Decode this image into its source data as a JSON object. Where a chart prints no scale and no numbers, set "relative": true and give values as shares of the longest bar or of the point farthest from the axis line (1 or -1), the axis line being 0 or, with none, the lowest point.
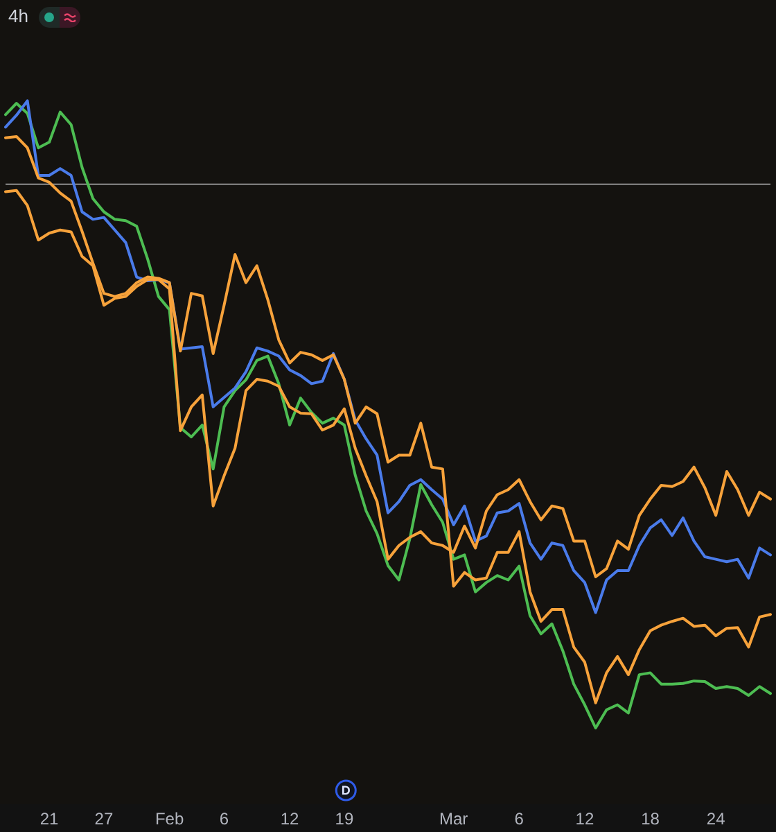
{
  "chart_data": {
    "type": "line",
    "title": "4h",
    "relative": true,
    "categories": [
      null,
      null,
      null,
      null,
      "21",
      null,
      null,
      null,
      null,
      "27",
      null,
      null,
      null,
      null,
      null,
      "Feb",
      null,
      null,
      null,
      null,
      "6",
      null,
      null,
      null,
      null,
      null,
      "12",
      null,
      null,
      null,
      null,
      "19",
      null,
      null,
      null,
      null,
      null,
      null,
      null,
      null,
      null,
      "Mar",
      null,
      null,
      null,
      null,
      null,
      "6",
      null,
      null,
      null,
      null,
      null,
      "12",
      null,
      null,
      null,
      null,
      null,
      "18",
      null,
      null,
      null,
      null,
      null,
      "24",
      null,
      null,
      null,
      null,
      null
    ],
    "series": [
      {
        "color": "#f7a23b",
        "values": [
          0.855,
          0.857,
          0.833,
          0.778,
          0.789,
          0.794,
          0.791,
          0.752,
          0.737,
          0.674,
          0.685,
          0.688,
          0.704,
          0.715,
          0.715,
          0.7,
          0.474,
          0.512,
          0.531,
          0.354,
          0.402,
          0.446,
          0.538,
          0.556,
          0.553,
          0.545,
          0.512,
          0.502,
          0.501,
          0.475,
          0.483,
          0.509,
          0.446,
          0.402,
          0.361,
          0.269,
          0.291,
          0.304,
          0.313,
          0.295,
          0.291,
          0.28,
          0.322,
          0.287,
          0.346,
          0.372,
          0.38,
          0.396,
          0.361,
          0.332,
          0.354,
          0.35,
          0.298,
          0.298,
          0.241,
          0.254,
          0.298,
          0.285,
          0.339,
          0.365,
          0.387,
          0.385,
          0.393,
          0.416,
          0.383,
          0.339,
          0.409,
          0.38,
          0.339,
          0.376,
          0.365
        ]
      },
      {
        "color": "#f7a23b",
        "values": [
          0.941,
          0.943,
          0.925,
          0.877,
          0.87,
          0.853,
          0.84,
          0.792,
          0.741,
          0.693,
          0.688,
          0.693,
          0.71,
          0.719,
          0.717,
          0.71,
          0.601,
          0.693,
          0.689,
          0.597,
          0.674,
          0.755,
          0.71,
          0.737,
          0.683,
          0.619,
          0.582,
          0.599,
          0.595,
          0.586,
          0.595,
          0.556,
          0.486,
          0.512,
          0.501,
          0.424,
          0.435,
          0.435,
          0.486,
          0.416,
          0.413,
          0.226,
          0.248,
          0.236,
          0.239,
          0.28,
          0.28,
          0.313,
          0.217,
          0.17,
          0.189,
          0.189,
          0.129,
          0.105,
          0.04,
          0.088,
          0.114,
          0.085,
          0.125,
          0.155,
          0.164,
          0.17,
          0.175,
          0.162,
          0.164,
          0.147,
          0.159,
          0.16,
          0.129,
          0.177,
          0.181
        ]
      },
      {
        "color": "#4a7bea",
        "values": [
          0.958,
          0.977,
          1,
          0.881,
          0.881,
          0.892,
          0.881,
          0.823,
          0.811,
          0.814,
          0.794,
          0.774,
          0.719,
          0.713,
          0.715,
          0.71,
          0.604,
          0.606,
          0.608,
          0.512,
          0.527,
          0.542,
          0.568,
          0.606,
          0.601,
          0.593,
          0.571,
          0.562,
          0.549,
          0.553,
          0.597,
          0.556,
          0.491,
          0.461,
          0.435,
          0.343,
          0.361,
          0.387,
          0.396,
          0.38,
          0.365,
          0.324,
          0.354,
          0.298,
          0.306,
          0.343,
          0.346,
          0.358,
          0.295,
          0.269,
          0.295,
          0.291,
          0.251,
          0.232,
          0.184,
          0.236,
          0.251,
          0.251,
          0.291,
          0.319,
          0.332,
          0.307,
          0.335,
          0.298,
          0.273,
          0.269,
          0.265,
          0.269,
          0.239,
          0.287,
          0.276
        ]
      },
      {
        "color": "#4dbd52",
        "values": [
          0.978,
          0.996,
          0.98,
          0.925,
          0.934,
          0.982,
          0.962,
          0.894,
          0.844,
          0.823,
          0.811,
          0.809,
          0.8,
          0.748,
          0.688,
          0.667,
          0.479,
          0.464,
          0.483,
          0.413,
          0.512,
          0.538,
          0.555,
          0.586,
          0.593,
          0.549,
          0.483,
          0.526,
          0.503,
          0.486,
          0.494,
          0.483,
          0.403,
          0.346,
          0.31,
          0.259,
          0.236,
          0.302,
          0.388,
          0.356,
          0.328,
          0.269,
          0.276,
          0.217,
          0.232,
          0.243,
          0.236,
          0.258,
          0.179,
          0.15,
          0.166,
          0.123,
          0.07,
          0.037,
          0,
          0.029,
          0.037,
          0.024,
          0.085,
          0.088,
          0.07,
          0.07,
          0.071,
          0.075,
          0.074,
          0.063,
          0.066,
          0.063,
          0.052,
          0.066,
          0.055
        ]
      }
    ],
    "ref_lines": [
      {
        "axis": "y",
        "value": 0.867,
        "color": "#8f8f8f"
      }
    ],
    "annotations": [
      "D"
    ]
  }
}
